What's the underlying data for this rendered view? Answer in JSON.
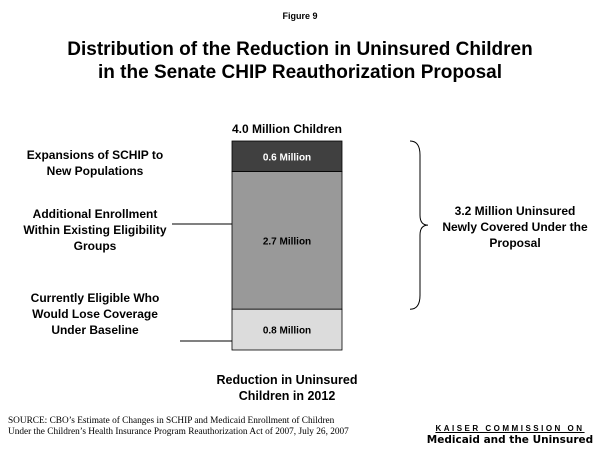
{
  "figure_label": "Figure 9",
  "chart_data": {
    "type": "stacked_bar",
    "title": [
      "Distribution of the Reduction in Uninsured Children",
      "in the Senate CHIP Reauthorization Proposal"
    ],
    "categories": [
      "Reduction in Uninsured Children in 2012"
    ],
    "series": [
      {
        "name": "Expansions of SCHIP to New Populations",
        "color": "#404040",
        "values": [
          0.6
        ],
        "value_labels": [
          "0.6 Million"
        ]
      },
      {
        "name": "Additional Enrollment Within Existing Eligibility Groups",
        "color": "#999999",
        "values": [
          2.7
        ],
        "value_labels": [
          "2.7 Million"
        ]
      },
      {
        "name": "Currently Eligible Who Would Lose Coverage Under Baseline",
        "color": "#dcdcdc",
        "values": [
          0.8
        ],
        "value_labels": [
          "0.8 Million"
        ]
      }
    ],
    "annotations": [
      "4.0 Million Children",
      "3.2 Million Uninsured Newly Covered Under the Proposal"
    ]
  },
  "source": "SOURCE:  CBO’s Estimate of Changes in SCHIP and Medicaid Enrollment of Children Under the Children’s Health Insurance Program Reauthorization Act of 2007, July 26, 2007",
  "logo": [
    "KAISER COMMISSION ON",
    "Medicaid and the Uninsured"
  ]
}
